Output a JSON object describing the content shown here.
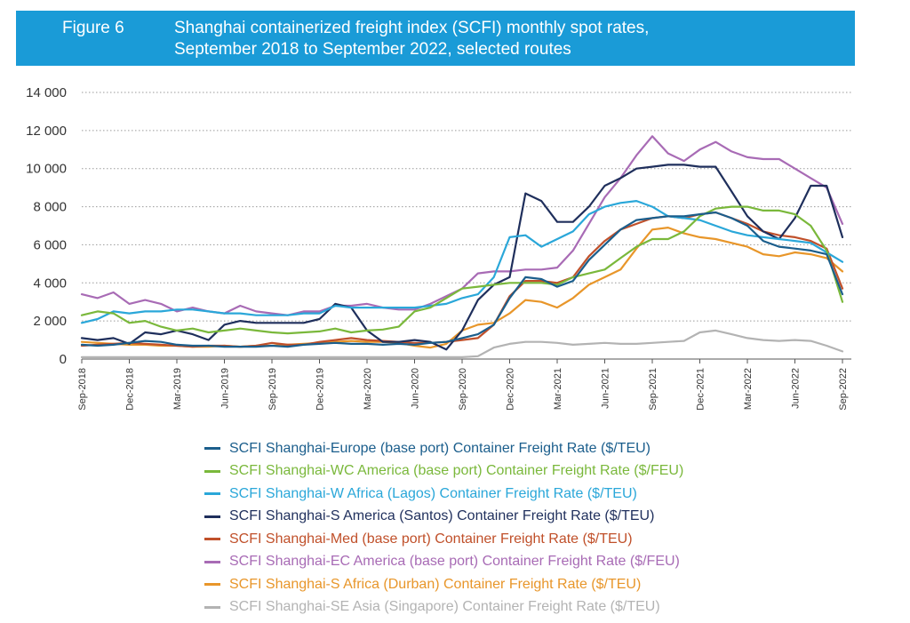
{
  "header": {
    "figure_label": "Figure 6",
    "title_line1": "Shanghai containerized freight index (SCFI) monthly spot rates,",
    "title_line2": "September 2018 to September 2022, selected routes"
  },
  "chart_data": {
    "type": "line",
    "title": "Shanghai containerized freight index (SCFI) monthly spot rates, September 2018 to September 2022, selected routes",
    "ylim": [
      0,
      14000
    ],
    "yticks": [
      0,
      2000,
      4000,
      6000,
      8000,
      10000,
      12000,
      14000
    ],
    "ytick_labels": [
      "0",
      "2 000",
      "4 000",
      "6 000",
      "8 000",
      "10 000",
      "12 000",
      "14 000"
    ],
    "xtick_labels": [
      "Sep-2018",
      "Dec-2018",
      "Mar-2019",
      "Jun-2019",
      "Sep-2019",
      "Dec-2019",
      "Mar-2020",
      "Jun-2020",
      "Sep-2020",
      "Dec-2020",
      "Mar-2021",
      "Jun-2021",
      "Sep-2021",
      "Dec-2021",
      "Mar-2022",
      "Jun-2022",
      "Sep-2022"
    ],
    "xtick_months": [
      0,
      3,
      6,
      9,
      12,
      15,
      18,
      21,
      24,
      27,
      30,
      33,
      36,
      39,
      42,
      45,
      48
    ],
    "grid": true,
    "legend_position": "bottom",
    "series": [
      {
        "name": "SCFI Shanghai-Europe (base port) Container Freight Rate ($/TEU)",
        "color": "#1b5e8c",
        "values": [
          750,
          700,
          750,
          850,
          950,
          900,
          750,
          700,
          700,
          650,
          650,
          650,
          700,
          650,
          750,
          800,
          850,
          800,
          800,
          750,
          800,
          750,
          850,
          900,
          1100,
          1300,
          1800,
          3200,
          4300,
          4200,
          3800,
          4100,
          5200,
          6000,
          6800,
          7300,
          7400,
          7500,
          7500,
          7600,
          7700,
          7400,
          7000,
          6200,
          5900,
          5800,
          5700,
          5500,
          3400
        ]
      },
      {
        "name": "SCFI Shanghai-WC America (base port) Container Freight Rate ($/FEU)",
        "color": "#7ab83b",
        "values": [
          2300,
          2500,
          2400,
          1900,
          2000,
          1700,
          1500,
          1600,
          1400,
          1500,
          1600,
          1500,
          1400,
          1350,
          1400,
          1450,
          1600,
          1400,
          1500,
          1550,
          1700,
          2500,
          2700,
          3200,
          3700,
          3800,
          3900,
          4000,
          4000,
          4000,
          3900,
          4300,
          4500,
          4700,
          5300,
          5900,
          6300,
          6300,
          6700,
          7500,
          7900,
          8000,
          8000,
          7800,
          7800,
          7600,
          7000,
          5700,
          3000
        ]
      },
      {
        "name": "SCFI Shanghai-W Africa (Lagos) Container Freight Rate ($/TEU)",
        "color": "#2aa7d9",
        "values": [
          1900,
          2100,
          2500,
          2400,
          2500,
          2500,
          2600,
          2600,
          2500,
          2400,
          2400,
          2300,
          2300,
          2300,
          2400,
          2400,
          2800,
          2700,
          2700,
          2700,
          2700,
          2700,
          2800,
          2900,
          3200,
          3400,
          4300,
          6400,
          6500,
          5900,
          6300,
          6700,
          7600,
          8000,
          8200,
          8300,
          8000,
          7500,
          7400,
          7300,
          7000,
          6700,
          6500,
          6400,
          6300,
          6200,
          6100,
          5600,
          5100
        ]
      },
      {
        "name": "SCFI Shanghai-S America (Santos) Container Freight Rate ($/TEU)",
        "color": "#1f2f5c",
        "values": [
          1100,
          1000,
          1100,
          800,
          1400,
          1300,
          1500,
          1300,
          1000,
          1800,
          2000,
          1900,
          1900,
          1900,
          1900,
          2100,
          2900,
          2700,
          1500,
          900,
          900,
          1000,
          900,
          500,
          1500,
          3100,
          3900,
          4300,
          8700,
          8300,
          7200,
          7200,
          8000,
          9100,
          9500,
          10000,
          10100,
          10200,
          10200,
          10100,
          10100,
          8800,
          7500,
          6700,
          6300,
          7400,
          9100,
          9100,
          6400
        ]
      },
      {
        "name": "SCFI Shanghai-Med (base port) Container Freight Rate ($/TEU)",
        "color": "#c0502a",
        "values": [
          700,
          750,
          800,
          850,
          800,
          750,
          700,
          650,
          700,
          700,
          650,
          700,
          850,
          750,
          750,
          900,
          1000,
          1100,
          1000,
          950,
          900,
          850,
          850,
          900,
          1000,
          1100,
          1800,
          3300,
          4100,
          4100,
          4000,
          4300,
          5400,
          6200,
          6800,
          7100,
          7400,
          7500,
          7400,
          7600,
          7700,
          7400,
          7100,
          6700,
          6500,
          6400,
          6200,
          5800,
          3700
        ]
      },
      {
        "name": "SCFI Shanghai-EC America (base port) Container Freight Rate ($/FEU)",
        "color": "#a86bb5",
        "values": [
          3400,
          3200,
          3500,
          2900,
          3100,
          2900,
          2500,
          2700,
          2500,
          2400,
          2800,
          2500,
          2400,
          2300,
          2500,
          2500,
          2800,
          2800,
          2900,
          2700,
          2600,
          2600,
          2900,
          3300,
          3700,
          4500,
          4600,
          4600,
          4700,
          4700,
          4800,
          5700,
          7100,
          8500,
          9500,
          10700,
          11700,
          10800,
          10400,
          11000,
          11400,
          10900,
          10600,
          10500,
          10500,
          10000,
          9500,
          9000,
          7100
        ]
      },
      {
        "name": "SCFI Shanghai-S Africa (Durban) Container Freight Rate ($/TEU)",
        "color": "#e8962a",
        "values": [
          900,
          850,
          800,
          750,
          750,
          700,
          700,
          650,
          650,
          700,
          650,
          700,
          700,
          750,
          800,
          850,
          900,
          950,
          900,
          900,
          850,
          700,
          600,
          800,
          1500,
          1800,
          1900,
          2400,
          3100,
          3000,
          2700,
          3200,
          3900,
          4300,
          4700,
          5800,
          6800,
          6900,
          6600,
          6400,
          6300,
          6100,
          5900,
          5500,
          5400,
          5600,
          5500,
          5300,
          4600
        ]
      },
      {
        "name": "SCFI Shanghai-SE Asia (Singapore) Container Freight Rate ($/TEU)",
        "color": "#b3b3b3",
        "values": [
          100,
          100,
          100,
          100,
          100,
          100,
          100,
          100,
          100,
          100,
          100,
          100,
          100,
          100,
          100,
          100,
          100,
          100,
          100,
          100,
          100,
          100,
          100,
          100,
          100,
          150,
          600,
          800,
          900,
          900,
          850,
          750,
          800,
          850,
          800,
          800,
          850,
          900,
          950,
          1400,
          1500,
          1300,
          1100,
          1000,
          950,
          1000,
          950,
          700,
          400
        ]
      }
    ]
  }
}
